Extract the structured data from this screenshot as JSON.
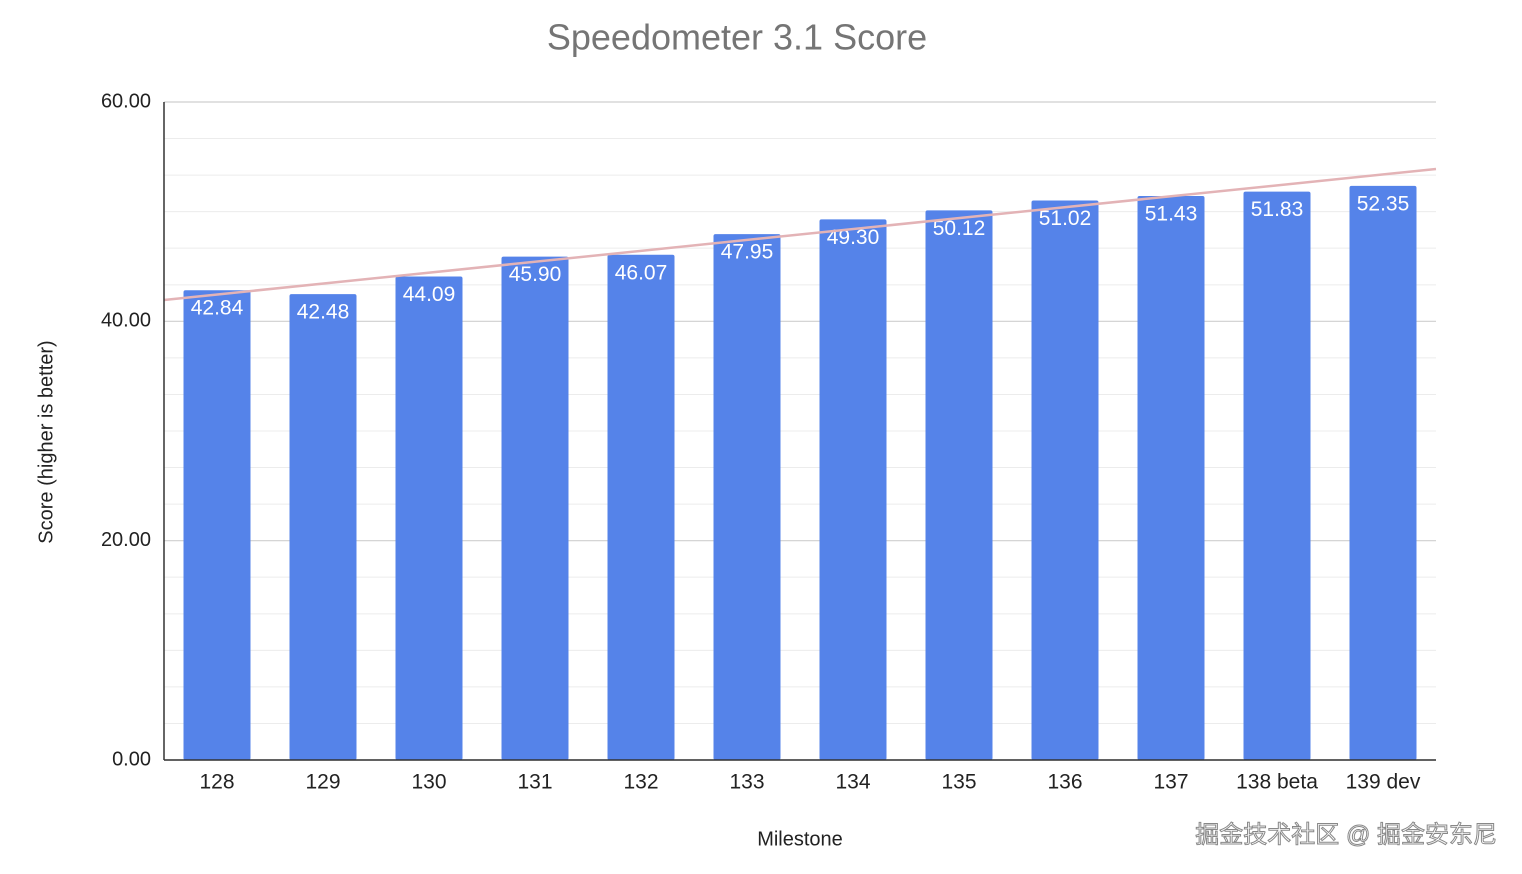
{
  "chart_data": {
    "type": "bar",
    "title": "Speedometer 3.1 Score",
    "x_label": "Milestone",
    "y_label": "Score (higher is better)",
    "categories": [
      "128",
      "129",
      "130",
      "131",
      "132",
      "133",
      "134",
      "135",
      "136",
      "137",
      "138 beta",
      "139 dev"
    ],
    "values": [
      42.84,
      42.48,
      44.09,
      45.9,
      46.07,
      47.95,
      49.3,
      50.12,
      51.02,
      51.43,
      51.83,
      52.35
    ],
    "value_labels": [
      "42.84",
      "42.48",
      "44.09",
      "45.90",
      "46.07",
      "47.95",
      "49.30",
      "50.12",
      "51.02",
      "51.43",
      "51.83",
      "52.35"
    ],
    "color": "#5583e9",
    "ylim": [
      0,
      60
    ],
    "yticks": [
      {
        "value": 0,
        "label": "0.00"
      },
      {
        "value": 20,
        "label": "20.00"
      },
      {
        "value": 40,
        "label": "40.00"
      },
      {
        "value": 60,
        "label": "60.00"
      }
    ],
    "minor_yticks": [
      3.33,
      6.67,
      10,
      13.33,
      16.67,
      23.33,
      26.67,
      30,
      33.33,
      36.67,
      43.33,
      46.67,
      50,
      53.33,
      56.67
    ],
    "grid": true,
    "trendline": {
      "color": "#e3b3b6",
      "start": 41.95,
      "end": 53.89
    },
    "watermark": "掘金技术社区 @ 掘金安东尼"
  }
}
